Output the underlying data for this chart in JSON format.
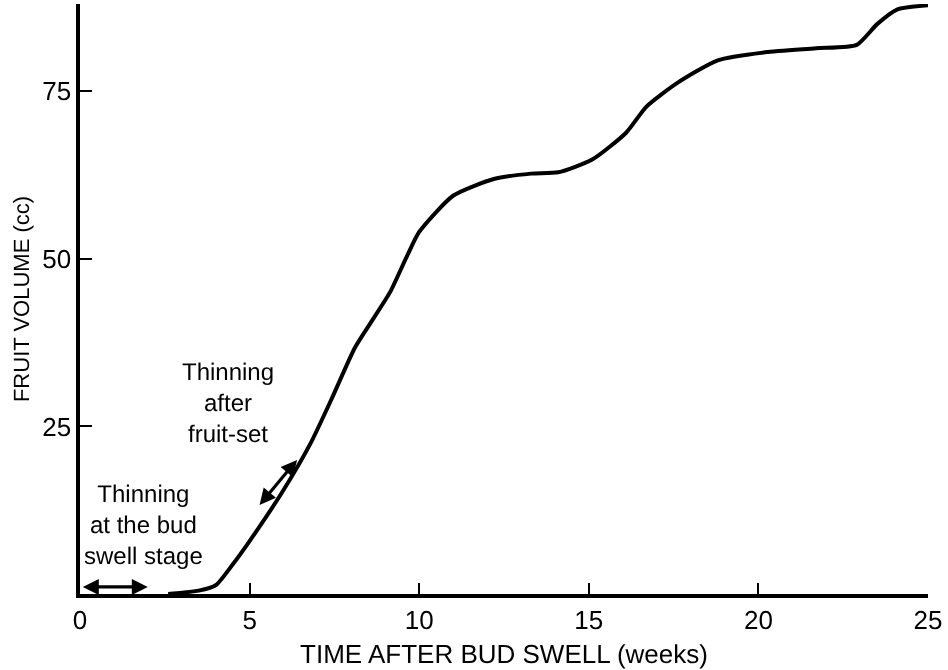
{
  "chart_data": {
    "type": "line",
    "xlabel": "TIME AFTER BUD SWELL (weeks)",
    "ylabel": "FRUIT VOLUME (cc)",
    "xlim": [
      0,
      25
    ],
    "xticks": [
      0,
      5,
      10,
      15,
      20,
      25
    ],
    "ylim": [
      0,
      88
    ],
    "yticks": [
      25,
      50,
      75
    ],
    "series": [
      {
        "color": "#000000",
        "x": [
          2.6,
          3.0,
          3.5,
          4.0,
          4.5,
          5.0,
          5.95,
          6.8,
          7.4,
          8.1,
          8.6,
          9.15,
          9.65,
          10.0,
          11.0,
          12.2,
          13.3,
          14.1,
          15.1,
          16.1,
          16.7,
          17.6,
          18.8,
          20.2,
          21.7,
          22.9,
          23.5,
          24.1,
          25.0
        ],
        "values": [
          0,
          0.2,
          0.5,
          1.3,
          4.4,
          7.9,
          15.1,
          22.5,
          28.9,
          36.7,
          40.7,
          45.1,
          50.5,
          54,
          59.4,
          61.9,
          62.7,
          62.9,
          64.8,
          68.8,
          72.7,
          76.2,
          79.6,
          80.8,
          81.4,
          81.9,
          85,
          87.2,
          87.8
        ]
      }
    ],
    "annotations": [
      "Thinning\nat the bud\nswell stage",
      {
        "text": "Thinning\nafter\nfruit-set",
        "x": 6.4,
        "y": 20
      }
    ]
  }
}
